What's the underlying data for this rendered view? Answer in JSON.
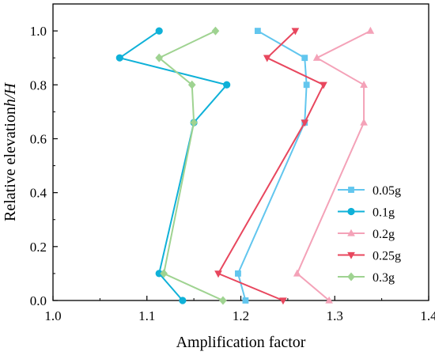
{
  "chart_data": {
    "type": "line",
    "title": "",
    "xlabel": "Amplification factor",
    "ylabel": "Relative elevation h/H",
    "ylabel_parts": {
      "main": "Relative elevation",
      "italic": "h/H"
    },
    "xlim": [
      1.0,
      1.4
    ],
    "ylim": [
      0.0,
      1.1
    ],
    "xticks": [
      1.0,
      1.1,
      1.2,
      1.3,
      1.4
    ],
    "xtick_labels": [
      "1.0",
      "1.1",
      "1.2",
      "1.3",
      "1.4"
    ],
    "yticks": [
      0.0,
      0.2,
      0.4,
      0.6,
      0.8,
      1.0
    ],
    "ytick_labels": [
      "0.0",
      "0.2",
      "0.4",
      "0.6",
      "0.8",
      "1.0"
    ],
    "grid": false,
    "legend_position": "bottom-right",
    "series": [
      {
        "name": "0.05g",
        "color": "#62c6ee",
        "marker": "square",
        "points": [
          [
            1.218,
            1.0
          ],
          [
            1.268,
            0.9
          ],
          [
            1.27,
            0.8
          ],
          [
            1.268,
            0.66
          ],
          [
            1.197,
            0.1
          ],
          [
            1.205,
            0.0
          ]
        ]
      },
      {
        "name": "0.1g",
        "color": "#0fb1d8",
        "marker": "circle",
        "points": [
          [
            1.113,
            1.0
          ],
          [
            1.071,
            0.9
          ],
          [
            1.185,
            0.8
          ],
          [
            1.15,
            0.66
          ],
          [
            1.113,
            0.1
          ],
          [
            1.138,
            0.0
          ]
        ]
      },
      {
        "name": "0.2g",
        "color": "#f4a2b8",
        "marker": "triangle-up",
        "points": [
          [
            1.338,
            1.0
          ],
          [
            1.281,
            0.9
          ],
          [
            1.331,
            0.8
          ],
          [
            1.331,
            0.66
          ],
          [
            1.26,
            0.1
          ],
          [
            1.294,
            0.0
          ]
        ]
      },
      {
        "name": "0.25g",
        "color": "#e8475e",
        "marker": "triangle-down",
        "points": [
          [
            1.258,
            1.0
          ],
          [
            1.228,
            0.9
          ],
          [
            1.288,
            0.8
          ],
          [
            1.268,
            0.66
          ],
          [
            1.176,
            0.1
          ],
          [
            1.245,
            0.0
          ]
        ]
      },
      {
        "name": "0.3g",
        "color": "#9fd391",
        "marker": "diamond",
        "points": [
          [
            1.173,
            1.0
          ],
          [
            1.113,
            0.9
          ],
          [
            1.148,
            0.8
          ],
          [
            1.15,
            0.66
          ],
          [
            1.118,
            0.1
          ],
          [
            1.181,
            0.0
          ]
        ]
      }
    ]
  }
}
